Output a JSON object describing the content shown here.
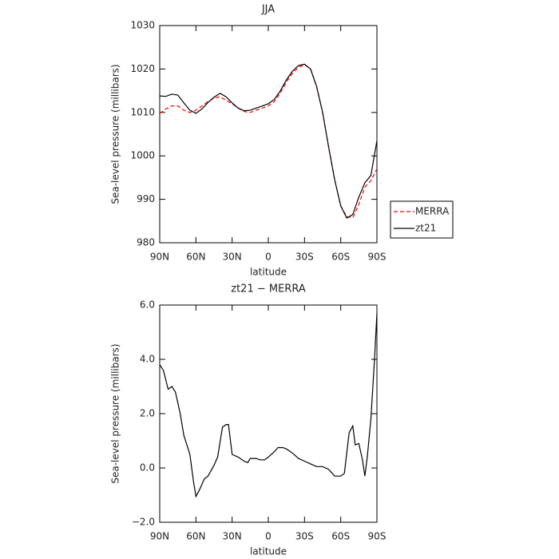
{
  "chart_data": [
    {
      "type": "line",
      "title": "JJA",
      "x_label": "latitude",
      "y_label": "Sea-level pressure (millibars)",
      "x": [
        90,
        85,
        80,
        75,
        70,
        65,
        60,
        55,
        50,
        45,
        40,
        35,
        30,
        25,
        20,
        15,
        10,
        5,
        0,
        -5,
        -10,
        -15,
        -20,
        -25,
        -30,
        -35,
        -40,
        -45,
        -50,
        -55,
        -60,
        -65,
        -70,
        -75,
        -80,
        -85,
        -90
      ],
      "series": [
        {
          "name": "MERRA",
          "color": "#ff0000",
          "dash": true,
          "values": [
            1009.8,
            1010.8,
            1011.5,
            1011.5,
            1010.5,
            1010.0,
            1010.5,
            1011.5,
            1012.5,
            1013.3,
            1013.6,
            1012.8,
            1012.0,
            1011.0,
            1010.2,
            1010.0,
            1010.5,
            1011.0,
            1011.5,
            1012.5,
            1014.5,
            1017.0,
            1019.0,
            1020.4,
            1021.0,
            1020.0,
            1016.0,
            1010.0,
            1002.0,
            994.5,
            988.5,
            986.0,
            985.8,
            988.8,
            992.8,
            994.3,
            997.0
          ]
        },
        {
          "name": "zt21",
          "color": "#000000",
          "dash": false,
          "values": [
            1013.8,
            1013.7,
            1014.2,
            1014.0,
            1012.2,
            1010.5,
            1009.8,
            1010.8,
            1012.3,
            1013.5,
            1014.4,
            1013.6,
            1012.2,
            1011.0,
            1010.4,
            1010.5,
            1011.0,
            1011.5,
            1012.0,
            1013.0,
            1015.0,
            1017.5,
            1019.5,
            1020.8,
            1021.1,
            1020.0,
            1016.0,
            1010.0,
            1002.0,
            994.5,
            988.5,
            985.7,
            986.5,
            990.5,
            993.8,
            995.5,
            1003.5
          ]
        }
      ],
      "xlim": [
        90,
        -90
      ],
      "xticks": [
        {
          "value": 90,
          "label": "90N"
        },
        {
          "value": 60,
          "label": "60N"
        },
        {
          "value": 30,
          "label": "30N"
        },
        0,
        {
          "value": -30,
          "label": "30S"
        },
        {
          "value": -60,
          "label": "60S"
        },
        {
          "value": -90,
          "label": "90S"
        }
      ],
      "ylim": [
        980,
        1030
      ],
      "yticks": [
        980,
        990,
        1000,
        1010,
        1020,
        1030
      ],
      "legend": "right"
    },
    {
      "type": "line",
      "title": "zt21 − MERRA",
      "x_label": "latitude",
      "y_label": "Sea-level pressure (millibars)",
      "x": [
        90,
        87,
        83,
        80,
        77,
        73,
        70,
        65,
        62,
        60,
        57,
        53,
        50,
        45,
        42,
        38,
        35,
        33,
        30,
        25,
        20,
        17,
        15,
        10,
        7,
        3,
        0,
        -5,
        -8,
        -12,
        -15,
        -20,
        -25,
        -30,
        -35,
        -40,
        -45,
        -50,
        -55,
        -60,
        -63,
        -67,
        -70,
        -72,
        -75,
        -78,
        -80,
        -82,
        -85,
        -88,
        -90
      ],
      "series": [
        {
          "name": "zt21",
          "color": "#000000",
          "dash": false,
          "values": [
            3.8,
            3.6,
            2.9,
            3.0,
            2.8,
            2.0,
            1.2,
            0.5,
            -0.5,
            -1.05,
            -0.8,
            -0.4,
            -0.3,
            0.1,
            0.4,
            1.5,
            1.6,
            1.6,
            0.5,
            0.4,
            0.25,
            0.2,
            0.35,
            0.35,
            0.3,
            0.3,
            0.4,
            0.6,
            0.75,
            0.75,
            0.7,
            0.55,
            0.35,
            0.25,
            0.15,
            0.05,
            0.05,
            -0.05,
            -0.3,
            -0.3,
            -0.2,
            1.3,
            1.55,
            0.85,
            0.9,
            0.3,
            -0.3,
            0.4,
            1.8,
            4.0,
            5.7
          ]
        }
      ],
      "xlim": [
        90,
        -90
      ],
      "xticks": [
        {
          "value": 90,
          "label": "90N"
        },
        {
          "value": 60,
          "label": "60N"
        },
        {
          "value": 30,
          "label": "30N"
        },
        0,
        {
          "value": -30,
          "label": "30S"
        },
        {
          "value": -60,
          "label": "60S"
        },
        {
          "value": -90,
          "label": "90S"
        }
      ],
      "ylim": [
        -2,
        6
      ],
      "yticks": [
        {
          "value": -2,
          "label": "−2.0"
        },
        {
          "value": 0,
          "label": "0.0"
        },
        {
          "value": 2,
          "label": "2.0"
        },
        {
          "value": 4,
          "label": "4.0"
        },
        {
          "value": 6,
          "label": "6.0"
        }
      ]
    }
  ]
}
